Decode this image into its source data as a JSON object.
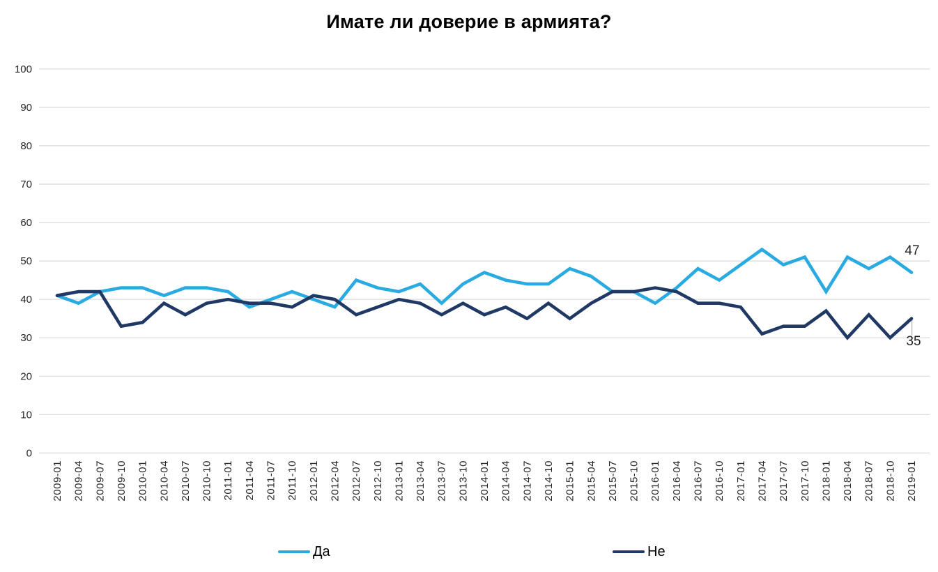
{
  "chart_data": {
    "type": "line",
    "title": "Имате ли доверие в армията?",
    "xlabel": "",
    "ylabel": "",
    "ylim": [
      0,
      100
    ],
    "yticks": [
      0,
      10,
      20,
      30,
      40,
      50,
      60,
      70,
      80,
      90,
      100
    ],
    "grid": "horizontal",
    "legend_position": "bottom",
    "categories": [
      "2009-01",
      "2009-04",
      "2009-07",
      "2009-10",
      "2010-01",
      "2010-04",
      "2010-07",
      "2010-10",
      "2011-01",
      "2011-04",
      "2011-07",
      "2011-10",
      "2012-01",
      "2012-04",
      "2012-07",
      "2012-10",
      "2013-01",
      "2013-04",
      "2013-07",
      "2013-10",
      "2014-01",
      "2014-04",
      "2014-07",
      "2014-10",
      "2015-01",
      "2015-04",
      "2015-07",
      "2015-10",
      "2016-01",
      "2016-04",
      "2016-07",
      "2016-10",
      "2017-01",
      "2017-04",
      "2017-07",
      "2017-10",
      "2018-01",
      "2018-04",
      "2018-07",
      "2018-10",
      "2019-01"
    ],
    "series": [
      {
        "name": "Да",
        "color": "#29ABE2",
        "values": [
          41,
          39,
          42,
          43,
          43,
          41,
          43,
          43,
          42,
          38,
          40,
          42,
          40,
          38,
          45,
          43,
          42,
          44,
          39,
          44,
          47,
          45,
          44,
          44,
          48,
          46,
          42,
          42,
          39,
          43,
          48,
          45,
          49,
          53,
          49,
          51,
          42,
          51,
          48,
          51,
          47
        ]
      },
      {
        "name": "Не",
        "color": "#1F3864",
        "values": [
          41,
          42,
          42,
          33,
          34,
          39,
          36,
          39,
          40,
          39,
          39,
          38,
          41,
          40,
          36,
          38,
          40,
          39,
          36,
          39,
          36,
          38,
          35,
          39,
          35,
          39,
          42,
          42,
          43,
          42,
          39,
          39,
          38,
          31,
          33,
          33,
          37,
          30,
          36,
          30,
          35
        ]
      }
    ],
    "end_value_labels": [
      "47",
      "35"
    ],
    "axis_label_color": "#262626",
    "gridline_color": "#D9D9D9"
  }
}
